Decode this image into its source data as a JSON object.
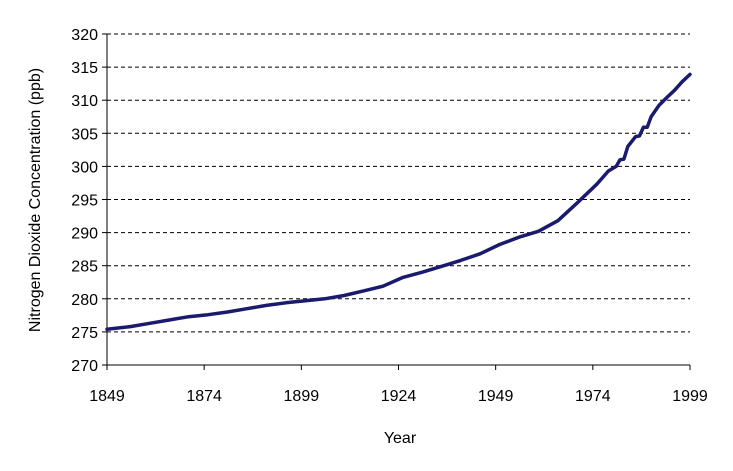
{
  "chart_data": {
    "type": "line",
    "title": "",
    "xlabel": "Year",
    "ylabel": "Nitrogen Dioxide Concentration (ppb)",
    "xlim": [
      1849,
      1999
    ],
    "ylim": [
      270,
      320
    ],
    "x_ticks": [
      1849,
      1874,
      1899,
      1924,
      1949,
      1974,
      1999
    ],
    "y_ticks": [
      270,
      275,
      280,
      285,
      290,
      295,
      300,
      305,
      310,
      315,
      320
    ],
    "grid": "horizontal dashed",
    "legend": "none",
    "series": [
      {
        "color": "#1a1a6e",
        "points": [
          [
            1849,
            275.4
          ],
          [
            1855,
            275.8
          ],
          [
            1860,
            276.3
          ],
          [
            1865,
            276.8
          ],
          [
            1870,
            277.3
          ],
          [
            1875,
            277.6
          ],
          [
            1880,
            278.0
          ],
          [
            1885,
            278.5
          ],
          [
            1890,
            279.0
          ],
          [
            1895,
            279.4
          ],
          [
            1900,
            279.7
          ],
          [
            1905,
            280.0
          ],
          [
            1910,
            280.5
          ],
          [
            1915,
            281.2
          ],
          [
            1920,
            281.9
          ],
          [
            1925,
            283.2
          ],
          [
            1930,
            284.0
          ],
          [
            1935,
            284.9
          ],
          [
            1940,
            285.8
          ],
          [
            1945,
            286.8
          ],
          [
            1950,
            288.2
          ],
          [
            1955,
            289.3
          ],
          [
            1960,
            290.2
          ],
          [
            1965,
            291.8
          ],
          [
            1970,
            294.5
          ],
          [
            1975,
            297.3
          ],
          [
            1978,
            299.3
          ],
          [
            1980,
            300.0
          ],
          [
            1981,
            301.0
          ],
          [
            1982,
            301.1
          ],
          [
            1983,
            303.0
          ],
          [
            1985,
            304.5
          ],
          [
            1986,
            304.6
          ],
          [
            1987,
            305.9
          ],
          [
            1988,
            305.9
          ],
          [
            1989,
            307.5
          ],
          [
            1991,
            309.2
          ],
          [
            1993,
            310.4
          ],
          [
            1995,
            311.5
          ],
          [
            1997,
            312.8
          ],
          [
            1999,
            313.9
          ]
        ]
      }
    ]
  }
}
